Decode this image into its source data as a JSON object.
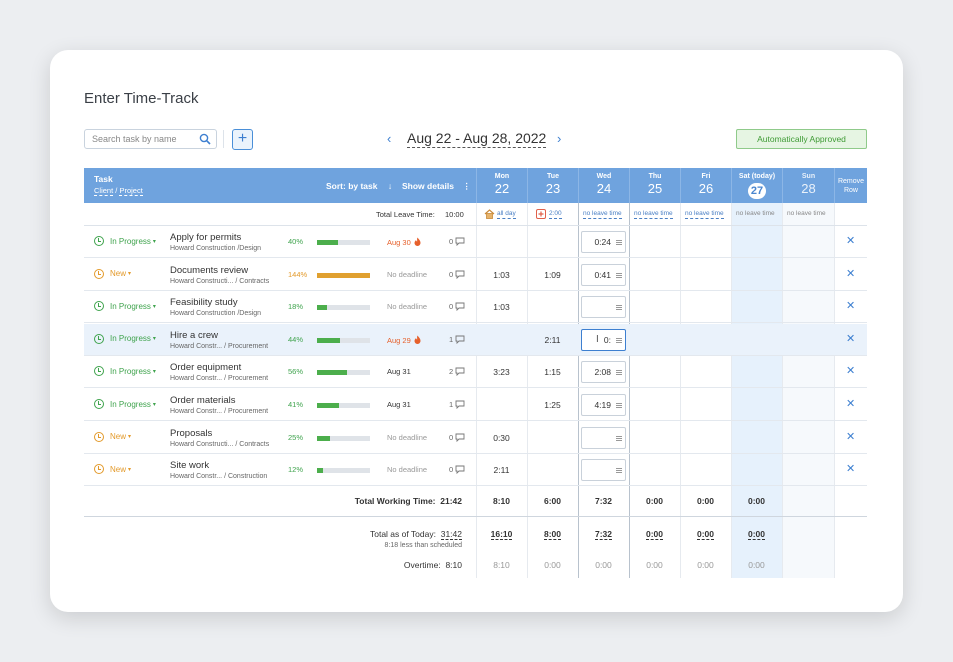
{
  "title": "Enter Time-Track",
  "search": {
    "placeholder": "Search task by name"
  },
  "add_label": "+",
  "date_range": "Aug 22 - Aug 28, 2022",
  "nav": {
    "prev": "‹",
    "next": "›"
  },
  "status_badge": "Automatically Approved",
  "header": {
    "task": "Task",
    "client": "Client",
    "slash": "/",
    "project": "Project",
    "sort": "Sort: by task",
    "sort_arrow": "↓",
    "details": "Show details",
    "details_more": "⋮",
    "remove_line1": "Remove",
    "remove_line2": "Row"
  },
  "days": [
    {
      "name": "Mon",
      "date": "22"
    },
    {
      "name": "Tue",
      "date": "23"
    },
    {
      "name": "Wed",
      "date": "24"
    },
    {
      "name": "Thu",
      "date": "25"
    },
    {
      "name": "Fri",
      "date": "26"
    },
    {
      "name": "Sat (today)",
      "date": "27"
    },
    {
      "name": "Sun",
      "date": "28"
    }
  ],
  "leave": {
    "label": "Total Leave Time:",
    "value": "10:00",
    "cells": [
      "all day",
      "2:00",
      "no leave time",
      "no leave time",
      "no leave time",
      "no leave time",
      "no leave time"
    ]
  },
  "tasks": [
    {
      "status": "In Progress",
      "name": "Apply for permits",
      "client": "Howard Construction",
      "project": "/Design",
      "pct": "40%",
      "progress": 0.4,
      "deadline": "Aug 30",
      "comments": "0",
      "mon": "",
      "tue": "",
      "wed": "0:24"
    },
    {
      "status": "New",
      "name": "Documents review",
      "client": "Howard Constructi...",
      "project": "/ Contracts",
      "pct": "144%",
      "progress": 1.0,
      "deadline": "No deadline",
      "comments": "0",
      "mon": "1:03",
      "tue": "1:09",
      "wed": "0:41"
    },
    {
      "status": "In Progress",
      "name": "Feasibility study",
      "client": "Howard Construction",
      "project": "/Design",
      "pct": "18%",
      "progress": 0.18,
      "deadline": "No deadline",
      "comments": "0",
      "mon": "1:03",
      "tue": "",
      "wed": ""
    },
    {
      "status": "In Progress",
      "name": "Hire a crew",
      "client": "Howard Constr...",
      "project": "/ Procurement",
      "pct": "44%",
      "progress": 0.44,
      "deadline": "Aug 29",
      "comments": "1",
      "mon": "",
      "tue": "2:11",
      "wed": "0:"
    },
    {
      "status": "In Progress",
      "name": "Order equipment",
      "client": "Howard Constr...",
      "project": "/ Procurement",
      "pct": "56%",
      "progress": 0.56,
      "deadline": "Aug 31",
      "comments": "2",
      "mon": "3:23",
      "tue": "1:15",
      "wed": "2:08"
    },
    {
      "status": "In Progress",
      "name": "Order materials",
      "client": "Howard Constr...",
      "project": "/ Procurement",
      "pct": "41%",
      "progress": 0.41,
      "deadline": "Aug 31",
      "comments": "1",
      "mon": "",
      "tue": "1:25",
      "wed": "4:19"
    },
    {
      "status": "New",
      "name": "Proposals",
      "client": "Howard Constructi...",
      "project": "/ Contracts",
      "pct": "25%",
      "progress": 0.25,
      "deadline": "No deadline",
      "comments": "0",
      "mon": "0:30",
      "tue": "",
      "wed": ""
    },
    {
      "status": "New",
      "name": "Site work",
      "client": "Howard Constr...",
      "project": "/ Construction",
      "pct": "12%",
      "progress": 0.12,
      "deadline": "No deadline",
      "comments": "0",
      "mon": "2:11",
      "tue": "",
      "wed": ""
    }
  ],
  "status_caret": "▾",
  "remove_glyph": "✕",
  "totals": {
    "working_label": "Total Working Time:",
    "working_value": "21:42",
    "working": [
      "8:10",
      "6:00",
      "7:32",
      "0:00",
      "0:00",
      "0:00"
    ],
    "today_label": "Total as of Today:",
    "today_value": "31:42",
    "today_note": "8:18 less than scheduled",
    "today": [
      "16:10",
      "8:00",
      "7:32",
      "0:00",
      "0:00",
      "0:00"
    ],
    "overtime_label": "Overtime:",
    "overtime_value": "8:10",
    "overtime": [
      "8:10",
      "0:00",
      "0:00",
      "0:00",
      "0:00",
      "0:00"
    ]
  },
  "colors": {
    "header_bg": "#6fa3de",
    "in_progress": "#3fa34d",
    "new": "#e39a2b",
    "accent": "#3d7fd0",
    "overdue": "#e6602b"
  }
}
